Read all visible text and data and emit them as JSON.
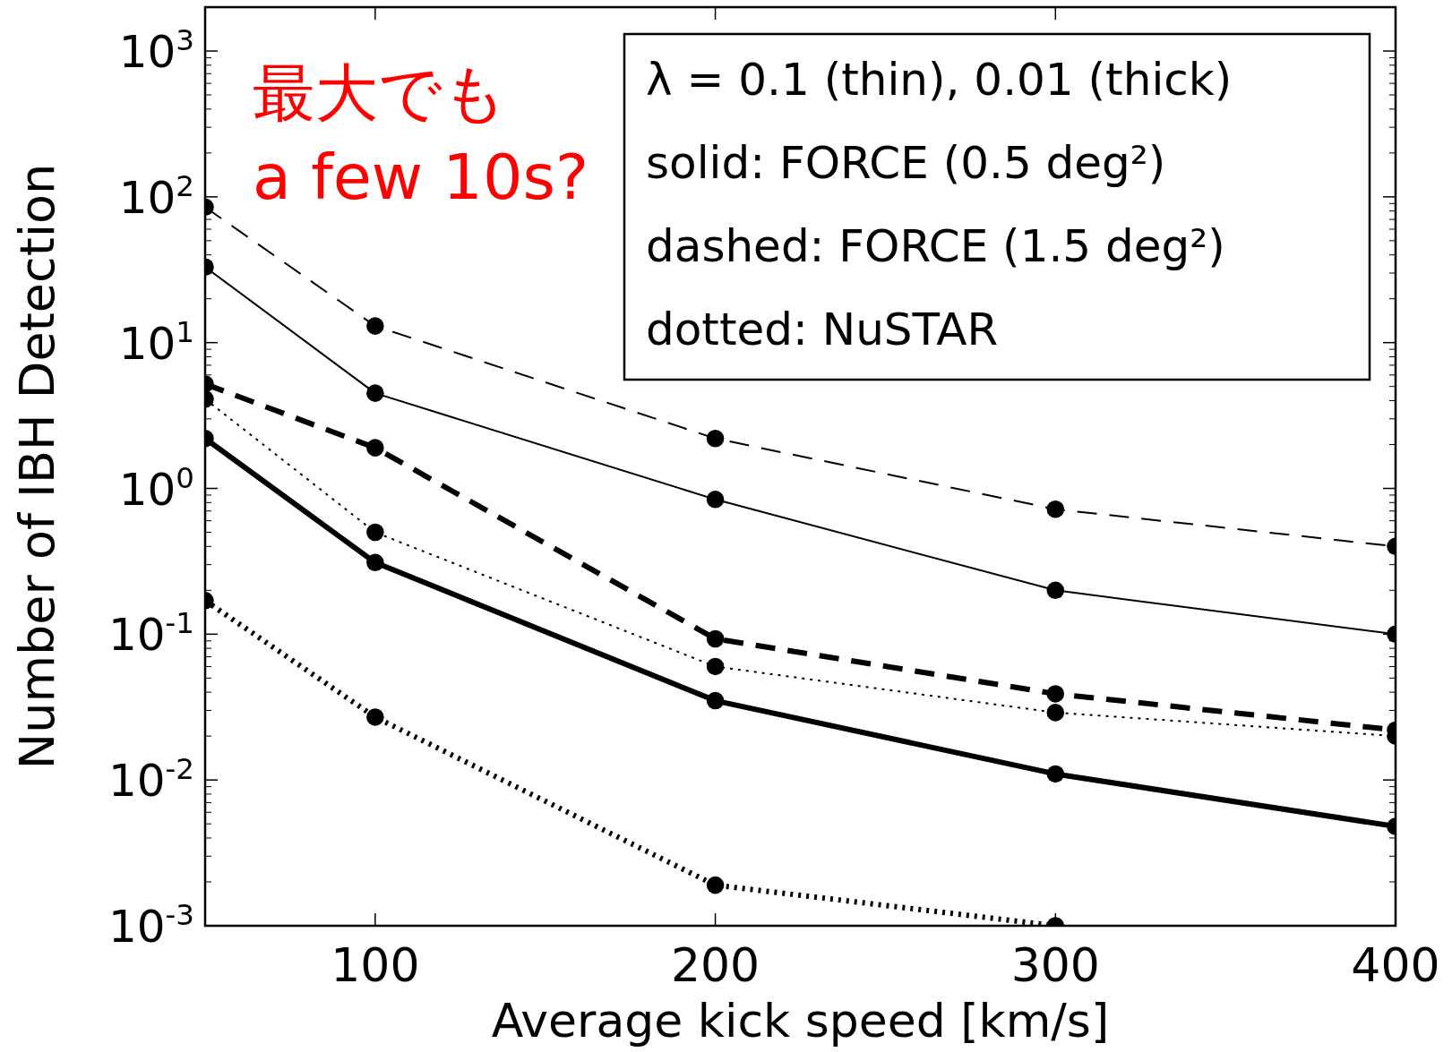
{
  "chart_data": {
    "type": "line",
    "xlabel": "Average kick speed [km/s]",
    "ylabel": "Number of IBH Detection",
    "log": "y",
    "grid": false,
    "marker": "circle",
    "x": [
      50,
      100,
      200,
      300,
      400
    ],
    "xlim": [
      50,
      400
    ],
    "xticks": [
      100,
      200,
      300,
      400
    ],
    "ylim": [
      0.001,
      2000
    ],
    "yticks": [
      {
        "value": 0.001,
        "label": "10$^{-3}$"
      },
      {
        "value": 0.01,
        "label": "10$^{-2}$"
      },
      {
        "value": 0.1,
        "label": "10$^{-1}$"
      },
      {
        "value": 1,
        "label": "10$^{0}$"
      },
      {
        "value": 10,
        "label": "10$^{1}$"
      },
      {
        "value": 100,
        "label": "10$^{2}$"
      },
      {
        "value": 1000,
        "label": "10$^{3}$"
      }
    ],
    "series": [
      {
        "color": "#000000",
        "line_style": "dashed",
        "values": [
          85,
          13,
          2.2,
          0.72,
          0.4
        ]
      },
      {
        "color": "#000000",
        "line_style": "solid",
        "values": [
          33,
          4.5,
          0.84,
          0.2,
          0.1
        ]
      },
      {
        "color": "#000000",
        "line_style": "dotted",
        "values": [
          4.1,
          0.5,
          0.06,
          0.029,
          0.02
        ]
      },
      {
        "color": "#000000",
        "line_style": "dashed",
        "values": [
          5.2,
          1.9,
          0.093,
          0.039,
          0.022
        ]
      },
      {
        "color": "#000000",
        "line_style": "solid",
        "values": [
          2.2,
          0.31,
          0.035,
          0.011,
          0.0048
        ]
      },
      {
        "color": "#000000",
        "line_style": "dotted",
        "values": [
          0.17,
          0.027,
          0.0019,
          0.001,
          null
        ]
      }
    ],
    "annotations": [
      "最大でも\na few 10s?",
      "λ = 0.1 (thin), 0.01 (thick)",
      "solid: FORCE (0.5 deg²)",
      "dashed: FORCE (1.5 deg²)",
      "dotted: NuSTAR"
    ]
  }
}
